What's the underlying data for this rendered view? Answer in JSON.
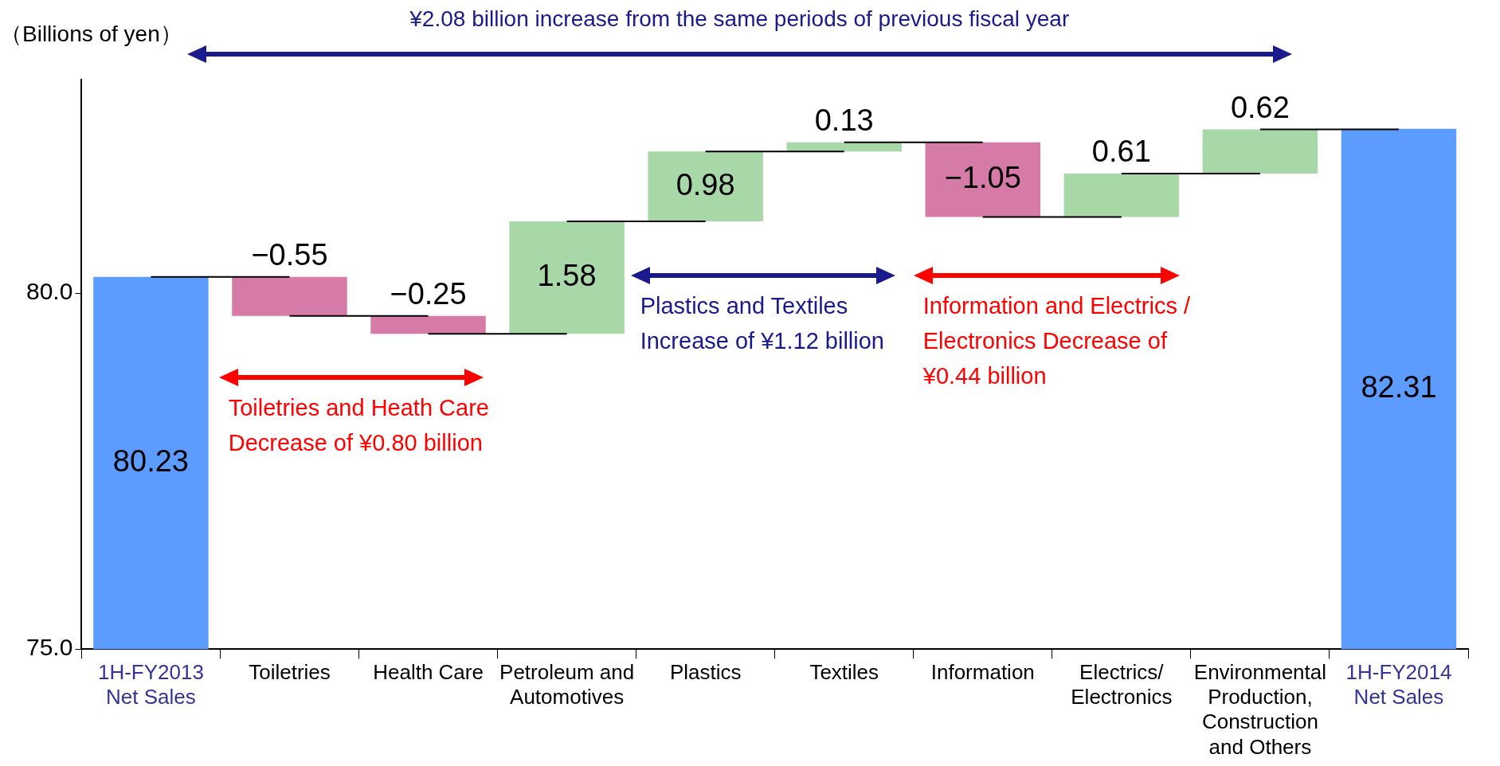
{
  "chart_data": {
    "type": "bar",
    "title": "¥2.08 billion increase from the same periods of previous fiscal year",
    "ylabel": "（Billions of yen）",
    "categories": [
      "1H-FY2013 Net Sales",
      "Toiletries",
      "Health Care",
      "Petroleum and Automotives",
      "Plastics",
      "Textiles",
      "Information",
      "Electrics/ Electronics",
      "Environmental Production, Construction and Others",
      "1H-FY2014 Net Sales"
    ],
    "values": [
      80.23,
      -0.55,
      -0.25,
      1.58,
      0.98,
      0.13,
      -1.05,
      0.61,
      0.62,
      82.31
    ],
    "base": [
      null,
      80.23,
      79.68,
      79.43,
      81.01,
      81.99,
      82.12,
      81.07,
      81.68,
      null
    ],
    "colors": [
      "#5c9cff",
      "#d67aa8",
      "#d67aa8",
      "#a8d8a8",
      "#a8d8a8",
      "#a8d8a8",
      "#d67aa8",
      "#a8d8a8",
      "#a8d8a8",
      "#5c9cff"
    ],
    "value_labels": [
      "80.23",
      "−0.55",
      "−0.25",
      "1.58",
      "0.98",
      "0.13",
      "−1.05",
      "0.61",
      "0.62",
      "82.31"
    ],
    "ylim": [
      75,
      83
    ],
    "yticks": [
      {
        "value": 75,
        "label": "75.0"
      },
      {
        "value": 80,
        "label": "80.0"
      }
    ],
    "grid": false,
    "legend": false,
    "annotations": [
      "Toiletries and Heath Care Decrease of ¥0.80 billion",
      "Plastics and Textiles Increase of ¥1.12 billion",
      "Information and Electrics / Electronics Decrease of ¥0.44 billion"
    ]
  }
}
